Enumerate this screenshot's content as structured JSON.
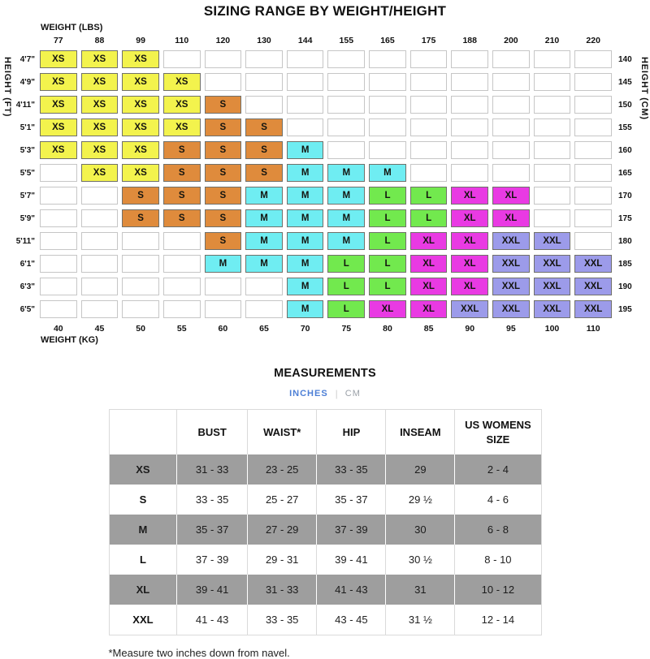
{
  "title": "SIZING RANGE BY WEIGHT/HEIGHT",
  "size_colors": {
    "XS": "#f3f34d",
    "S": "#df8b3c",
    "M": "#6fedf2",
    "L": "#72e94e",
    "XL": "#e93ae3",
    "XXL": "#9c9bea"
  },
  "measurements": {
    "tabs": [
      {
        "label": "INCHES",
        "active": true
      },
      {
        "label": "CM",
        "active": false
      }
    ],
    "tab_separator": "|",
    "active_tab_color": "#4d7fd6",
    "footnote": "*Measure two inches down from navel."
  },
  "chart_data": [
    {
      "type": "heatmap",
      "title": "SIZING RANGE BY WEIGHT/HEIGHT",
      "x_axis_top": {
        "label": "WEIGHT (LBS)",
        "ticks": [
          "77",
          "88",
          "99",
          "110",
          "120",
          "130",
          "144",
          "155",
          "165",
          "175",
          "188",
          "200",
          "210",
          "220"
        ]
      },
      "x_axis_bottom": {
        "label": "WEIGHT (KG)",
        "ticks": [
          "40",
          "45",
          "50",
          "55",
          "60",
          "65",
          "70",
          "75",
          "80",
          "85",
          "90",
          "95",
          "100",
          "110"
        ]
      },
      "y_axis_left": {
        "label": "HEIGHT (FT)",
        "ticks": [
          "4'7\"",
          "4'9\"",
          "4'11\"",
          "5'1\"",
          "5'3\"",
          "5'5\"",
          "5'7\"",
          "5'9\"",
          "5'11\"",
          "6'1\"",
          "6'3\"",
          "6'5\""
        ]
      },
      "y_axis_right": {
        "label": "HEIGHT (CM)",
        "ticks": [
          "140",
          "145",
          "150",
          "155",
          "160",
          "165",
          "170",
          "175",
          "180",
          "185",
          "190",
          "195"
        ]
      },
      "values": [
        [
          "XS",
          "XS",
          "XS",
          "",
          "",
          "",
          "",
          "",
          "",
          "",
          "",
          "",
          "",
          ""
        ],
        [
          "XS",
          "XS",
          "XS",
          "XS",
          "",
          "",
          "",
          "",
          "",
          "",
          "",
          "",
          "",
          ""
        ],
        [
          "XS",
          "XS",
          "XS",
          "XS",
          "S",
          "",
          "",
          "",
          "",
          "",
          "",
          "",
          "",
          ""
        ],
        [
          "XS",
          "XS",
          "XS",
          "XS",
          "S",
          "S",
          "",
          "",
          "",
          "",
          "",
          "",
          "",
          ""
        ],
        [
          "XS",
          "XS",
          "XS",
          "S",
          "S",
          "S",
          "M",
          "",
          "",
          "",
          "",
          "",
          "",
          ""
        ],
        [
          "",
          "XS",
          "XS",
          "S",
          "S",
          "S",
          "M",
          "M",
          "M",
          "",
          "",
          "",
          "",
          ""
        ],
        [
          "",
          "",
          "S",
          "S",
          "S",
          "M",
          "M",
          "M",
          "L",
          "L",
          "XL",
          "XL",
          "",
          ""
        ],
        [
          "",
          "",
          "S",
          "S",
          "S",
          "M",
          "M",
          "M",
          "L",
          "L",
          "XL",
          "XL",
          "",
          ""
        ],
        [
          "",
          "",
          "",
          "",
          "S",
          "M",
          "M",
          "M",
          "L",
          "XL",
          "XL",
          "XXL",
          "XXL",
          ""
        ],
        [
          "",
          "",
          "",
          "",
          "M",
          "M",
          "M",
          "L",
          "L",
          "XL",
          "XL",
          "XXL",
          "XXL",
          "XXL"
        ],
        [
          "",
          "",
          "",
          "",
          "",
          "",
          "M",
          "L",
          "L",
          "XL",
          "XL",
          "XXL",
          "XXL",
          "XXL"
        ],
        [
          "",
          "",
          "",
          "",
          "",
          "",
          "M",
          "L",
          "XL",
          "XL",
          "XXL",
          "XXL",
          "XXL",
          "XXL"
        ]
      ]
    },
    {
      "type": "table",
      "title": "MEASUREMENTS",
      "columns": [
        "",
        "BUST",
        "WAIST*",
        "HIP",
        "INSEAM",
        "US WOMENS SIZE"
      ],
      "rows": [
        [
          "XS",
          "31 - 33",
          "23 - 25",
          "33 - 35",
          "29",
          "2 - 4"
        ],
        [
          "S",
          "33 - 35",
          "25 - 27",
          "35 - 37",
          "29 ½",
          "4 - 6"
        ],
        [
          "M",
          "35 - 37",
          "27 - 29",
          "37 - 39",
          "30",
          "6 - 8"
        ],
        [
          "L",
          "37 - 39",
          "29 - 31",
          "39 - 41",
          "30 ½",
          "8 - 10"
        ],
        [
          "XL",
          "39 - 41",
          "31 - 33",
          "41 - 43",
          "31",
          "10 - 12"
        ],
        [
          "XXL",
          "41 - 43",
          "33 - 35",
          "43 - 45",
          "31 ½",
          "12 - 14"
        ]
      ],
      "shaded_rows": [
        0,
        2,
        4
      ],
      "shade_color": "#9e9e9e"
    }
  ]
}
